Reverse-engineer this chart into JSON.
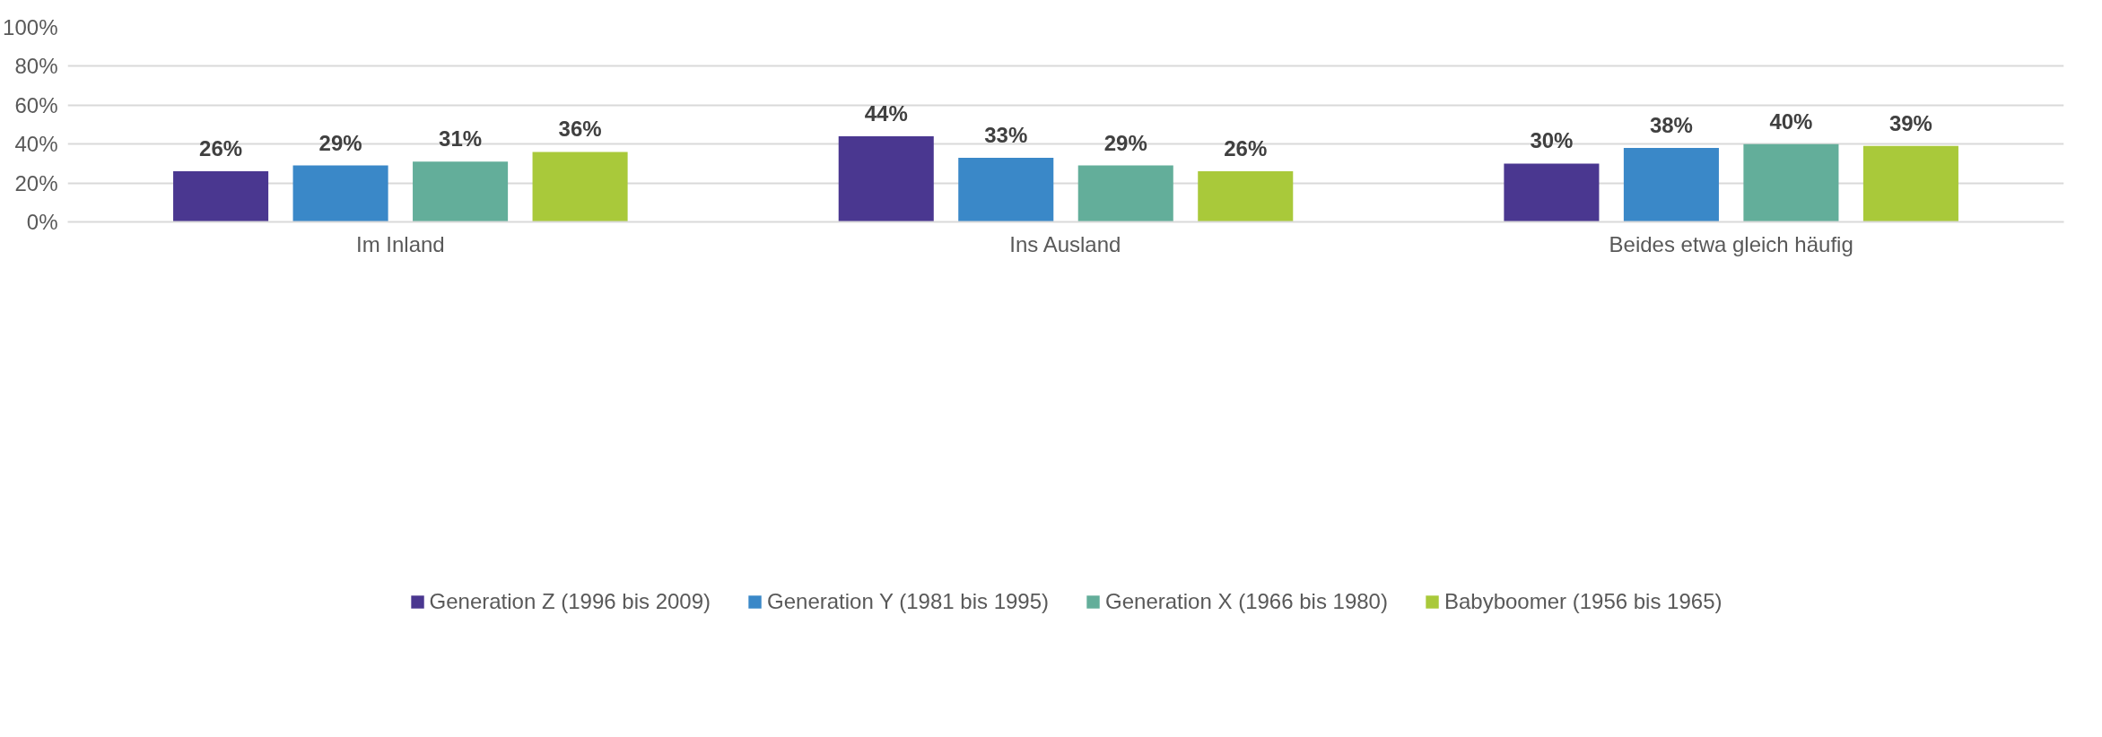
{
  "chart_data": {
    "type": "bar",
    "categories": [
      "Im Inland",
      "Ins Ausland",
      "Beides etwa gleich häufig"
    ],
    "series": [
      {
        "name": "Generation Z (1996 bis 2009)",
        "color": "#4a3790",
        "values": [
          26,
          44,
          30
        ],
        "value_labels": [
          "26%",
          "44%",
          "30%"
        ]
      },
      {
        "name": "Generation Y (1981 bis 1995)",
        "color": "#3a88c8",
        "values": [
          29,
          33,
          38
        ],
        "value_labels": [
          "29%",
          "33%",
          "38%"
        ]
      },
      {
        "name": "Generation X (1966 bis 1980)",
        "color": "#63ae9a",
        "values": [
          31,
          29,
          40
        ],
        "value_labels": [
          "31%",
          "29%",
          "40%"
        ]
      },
      {
        "name": "Babyboomer (1956 bis 1965)",
        "color": "#a9c93a",
        "values": [
          36,
          26,
          39
        ],
        "value_labels": [
          "36%",
          "26%",
          "39%"
        ]
      }
    ],
    "ylim": [
      0,
      100
    ],
    "yticks": [
      {
        "value": 0,
        "label": "0%"
      },
      {
        "value": 20,
        "label": "20%"
      },
      {
        "value": 40,
        "label": "40%"
      },
      {
        "value": 60,
        "label": "60%"
      },
      {
        "value": 80,
        "label": "80%"
      },
      {
        "value": 100,
        "label": "100%"
      }
    ],
    "grid": "y",
    "legend": "bottom"
  }
}
